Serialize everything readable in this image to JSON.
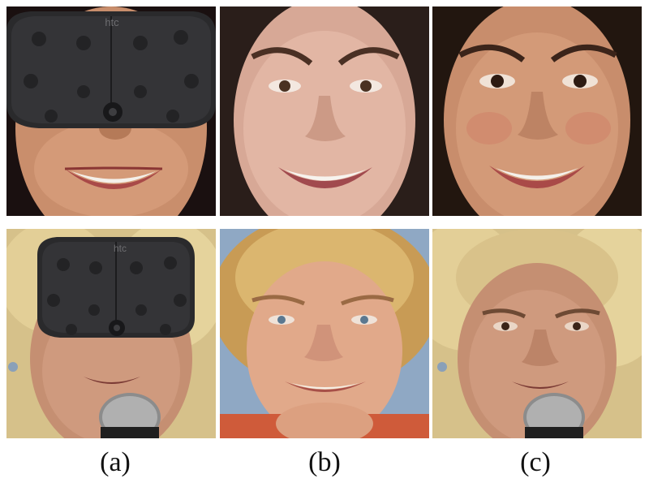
{
  "figure": {
    "captions": [
      "(a)",
      "(b)",
      "(c)"
    ],
    "rows": [
      {
        "subject": "smiling brunette woman",
        "panels": [
          {
            "column": "a",
            "content": "lower face with HTC VR headset covering eyes",
            "headset_logo": "htc"
          },
          {
            "column": "b",
            "content": "unoccluded ground-truth face"
          },
          {
            "column": "c",
            "content": "reconstructed full face"
          }
        ]
      },
      {
        "subject": "older woman with curly blonde hair speaking at microphone",
        "panels": [
          {
            "column": "a",
            "content": "face with HTC VR headset covering eyes, microphone in front",
            "headset_logo": "htc"
          },
          {
            "column": "b",
            "content": "reference face photo"
          },
          {
            "column": "c",
            "content": "reconstructed face with microphone"
          }
        ]
      }
    ]
  }
}
